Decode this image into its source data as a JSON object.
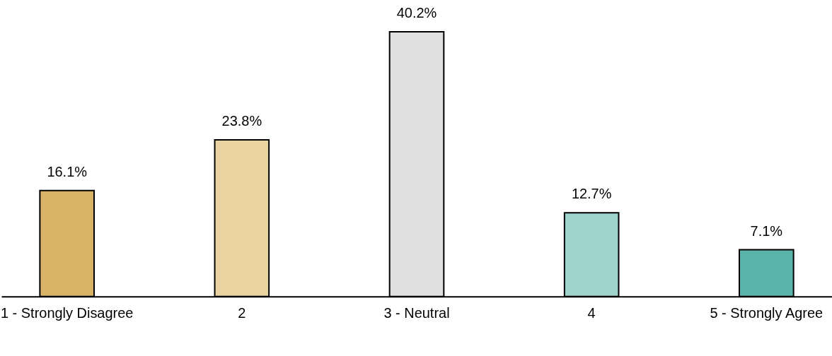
{
  "chart_data": {
    "type": "bar",
    "categories": [
      "1 - Strongly Disagree",
      "2",
      "3 - Neutral",
      "4",
      "5 - Strongly Agree"
    ],
    "values": [
      16.1,
      23.8,
      40.2,
      12.7,
      7.1
    ],
    "colors": [
      "#d8b365",
      "#e8d3a1",
      "#e0e0e0",
      "#9dd3cc",
      "#5ab4ac"
    ],
    "value_labels": [
      "16.1%",
      "23.8%",
      "40.2%",
      "12.7%",
      "7.1%"
    ],
    "ylim": [
      0,
      45
    ],
    "tick_labels": "x",
    "grid": false
  }
}
